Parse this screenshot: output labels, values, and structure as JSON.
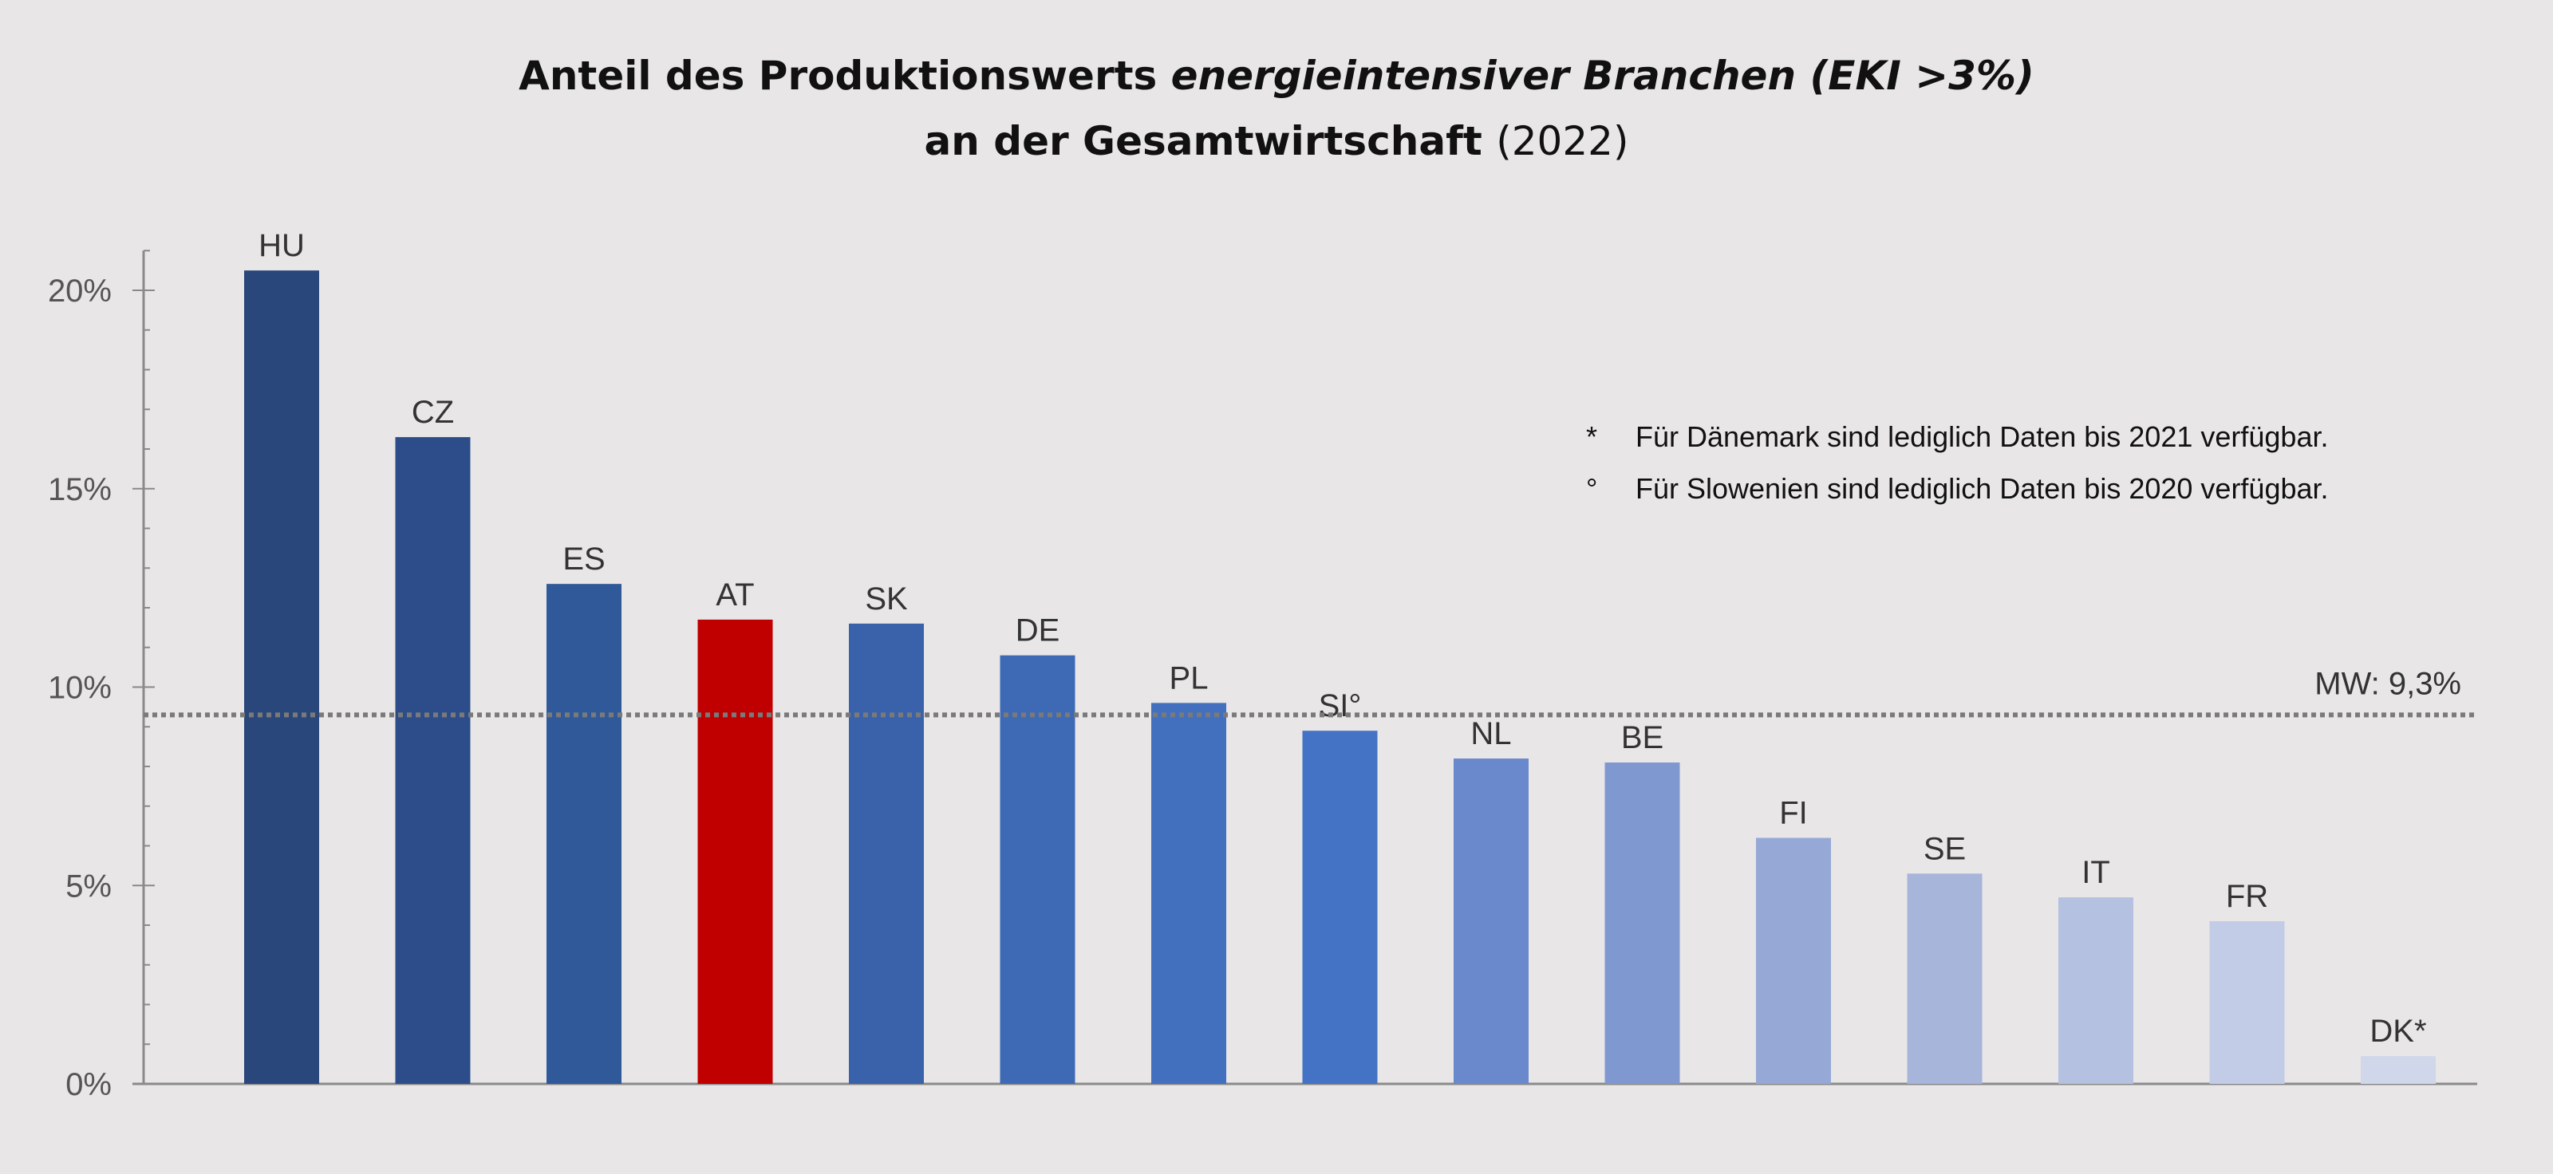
{
  "chart_data": {
    "type": "bar",
    "title": {
      "line1_regular": "Anteil des Produktionswerts ",
      "line1_italic": "energieintensiver Branchen (EKI >3%)",
      "line2_bold": "an der Gesamtwirtschaft ",
      "line2_regular": "(2022)"
    },
    "categories": [
      "HU",
      "CZ",
      "ES",
      "AT",
      "SK",
      "DE",
      "PL",
      "SI°",
      "NL",
      "BE",
      "FI",
      "SE",
      "IT",
      "FR",
      "DK*"
    ],
    "values": [
      20.5,
      16.3,
      12.6,
      11.7,
      11.6,
      10.8,
      9.6,
      8.9,
      8.2,
      8.1,
      6.2,
      5.3,
      4.7,
      4.1,
      0.7
    ],
    "colors": [
      "#29477a",
      "#2d4d8a",
      "#30599a",
      "#c00000",
      "#3a62aa",
      "#3d69b5",
      "#4270be",
      "#4472c4",
      "#6a89cc",
      "#7f99d0",
      "#96a9d6",
      "#a7b5da",
      "#b5c1e0",
      "#c3cce6",
      "#d0d7eb"
    ],
    "ylim": [
      0,
      21
    ],
    "yticks": [
      0,
      5,
      10,
      15,
      20
    ],
    "ytick_labels": [
      "0%",
      "5%",
      "10%",
      "15%",
      "20%"
    ],
    "minor_tick_step": 1,
    "grid": false,
    "mean_line": {
      "value": 9.3,
      "label": "MW: 9,3%",
      "style": "dotted",
      "color": "#7a7a7a"
    },
    "footnotes": [
      {
        "marker": "*",
        "text": "Für Dänemark sind lediglich Daten bis 2021 verfügbar."
      },
      {
        "marker": "°",
        "text": "Für Slowenien sind lediglich Daten bis 2020 verfügbar."
      }
    ],
    "xlabel": "",
    "ylabel": ""
  }
}
